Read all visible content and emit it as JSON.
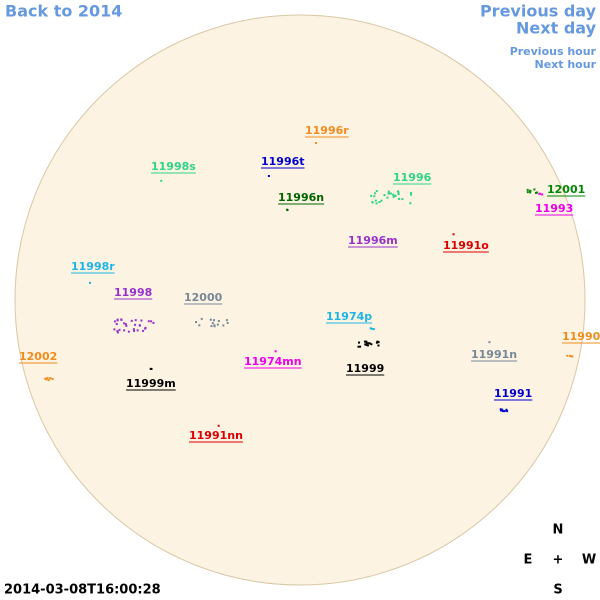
{
  "navigation": {
    "back_year": "Back to 2014",
    "previous_day": "Previous day",
    "next_day": "Next day",
    "previous_hour": "Previous hour",
    "next_hour": "Next hour"
  },
  "regions": [
    {
      "name": "11996r",
      "color": "#f08c1e"
    },
    {
      "name": "11998s",
      "color": "#2ed48a"
    },
    {
      "name": "11996t",
      "color": "#0000cc"
    },
    {
      "name": "11996",
      "color": "#2ed48a"
    },
    {
      "name": "12001",
      "color": "#008800"
    },
    {
      "name": "11996n",
      "color": "#006400"
    },
    {
      "name": "11993",
      "color": "#ee00ee"
    },
    {
      "name": "11996m",
      "color": "#9932cc"
    },
    {
      "name": "11991o",
      "color": "#dd0000"
    },
    {
      "name": "11998r",
      "color": "#1eb4e6"
    },
    {
      "name": "11998",
      "color": "#9932cc"
    },
    {
      "name": "12000",
      "color": "#778899"
    },
    {
      "name": "11974p",
      "color": "#1eb4e6"
    },
    {
      "name": "11990",
      "color": "#f08c1e"
    },
    {
      "name": "12002",
      "color": "#f08c1e"
    },
    {
      "name": "11991n",
      "color": "#778899"
    },
    {
      "name": "11974mn",
      "color": "#ee00ee"
    },
    {
      "name": "11999",
      "color": "#000000"
    },
    {
      "name": "11999m",
      "color": "#000000"
    },
    {
      "name": "11991",
      "color": "#0000cc"
    },
    {
      "name": "11991nn",
      "color": "#dd0000"
    }
  ],
  "timestamp": "2014-03-08T16:00:28",
  "compass": {
    "north": "N",
    "east": "E",
    "center": "+",
    "west": "W",
    "south": "S"
  }
}
